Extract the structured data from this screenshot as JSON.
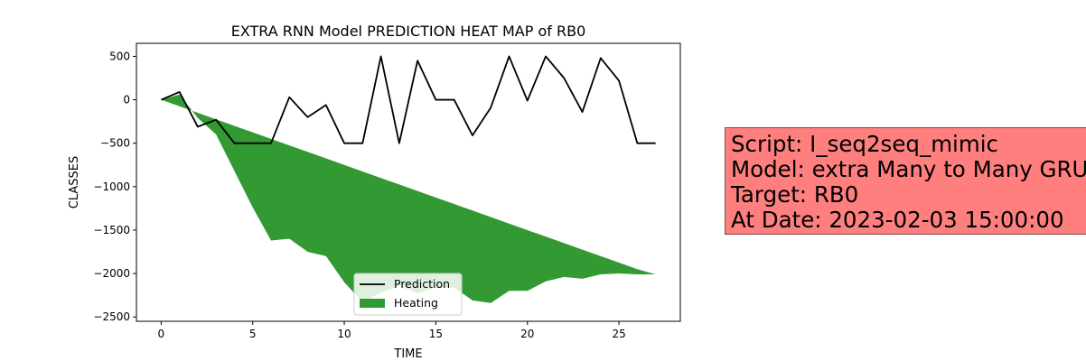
{
  "chart_data": {
    "type": "line",
    "title": "EXTRA RNN Model PREDICTION HEAT MAP of RB0",
    "xlabel": "TIME",
    "ylabel": "CLASSES",
    "xlim": [
      -1.35,
      28.35
    ],
    "ylim": [
      -2550,
      650
    ],
    "xticks": [
      0,
      5,
      10,
      15,
      20,
      25
    ],
    "yticks": [
      500,
      0,
      -500,
      -1000,
      -1500,
      -2000,
      -2500
    ],
    "ytick_labels": [
      "500",
      "0",
      "−500",
      "−1000",
      "−1500",
      "−2000",
      "−2500"
    ],
    "grid": false,
    "legend_position": "bottom-center",
    "series": [
      {
        "name": "Prediction",
        "kind": "line",
        "color": "#000000",
        "x": [
          0,
          1,
          2,
          3,
          4,
          5,
          6,
          7,
          8,
          9,
          10,
          11,
          12,
          13,
          14,
          15,
          16,
          17,
          18,
          19,
          20,
          21,
          22,
          23,
          24,
          25,
          26,
          27
        ],
        "y": [
          0,
          90,
          -310,
          -230,
          -500,
          -500,
          -500,
          30,
          -200,
          -60,
          -500,
          -500,
          500,
          -500,
          450,
          0,
          0,
          -410,
          -90,
          500,
          -10,
          500,
          250,
          -140,
          480,
          220,
          -500,
          -500
        ]
      },
      {
        "name": "Heating",
        "kind": "area",
        "color": "#339933",
        "x": [
          0,
          1,
          2,
          3,
          4,
          5,
          6,
          7,
          8,
          9,
          10,
          11,
          12,
          13,
          14,
          15,
          16,
          17,
          18,
          19,
          20,
          21,
          22,
          23,
          24,
          25,
          26,
          27
        ],
        "y_lower": [
          0,
          60,
          -210,
          -400,
          -820,
          -1240,
          -1620,
          -1600,
          -1750,
          -1800,
          -2100,
          -2330,
          -2220,
          -2140,
          -2230,
          -2160,
          -2160,
          -2310,
          -2340,
          -2200,
          -2200,
          -2090,
          -2040,
          -2060,
          -2010,
          -2000,
          -2010,
          -2010
        ],
        "y_upper": [
          0,
          -75,
          -150,
          -225,
          -300,
          -375,
          -450,
          -525,
          -600,
          -675,
          -750,
          -825,
          -900,
          -975,
          -1050,
          -1125,
          -1200,
          -1275,
          -1350,
          -1425,
          -1500,
          -1575,
          -1650,
          -1725,
          -1800,
          -1875,
          -1950,
          -2010
        ]
      }
    ]
  },
  "info_box": {
    "background": "#ff7f7f",
    "lines": [
      "Script: I_seq2seq_mimic",
      "Model: extra Many to Many GRU",
      "Target: RB0",
      "At Date: 2023-02-03 15:00:00"
    ]
  }
}
